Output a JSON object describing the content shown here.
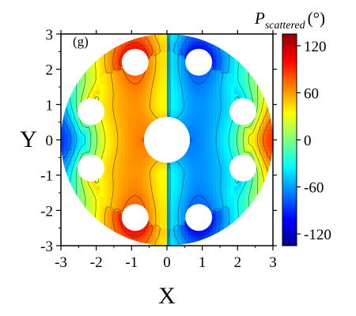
{
  "chart_data": {
    "type": "heatmap",
    "panel_label": "(g)",
    "xlabel": "X",
    "ylabel": "Y",
    "xlim": [
      -3,
      3
    ],
    "ylim": [
      -3,
      3
    ],
    "x_ticks": [
      "-3",
      "-2",
      "-1",
      "0",
      "1",
      "2",
      "3"
    ],
    "y_ticks": [
      "3",
      "2",
      "1",
      "0",
      "-1",
      "-2",
      "-3"
    ],
    "domain": {
      "shape": "disk",
      "center": [
        0,
        0
      ],
      "radius": 3
    },
    "holes": [
      {
        "x": 0,
        "y": 0,
        "r": 0.65
      },
      {
        "x": -0.9,
        "y": 2.2,
        "r": 0.38
      },
      {
        "x": 0.9,
        "y": 2.2,
        "r": 0.38
      },
      {
        "x": -2.15,
        "y": 0.8,
        "r": 0.38
      },
      {
        "x": 2.15,
        "y": 0.8,
        "r": 0.38
      },
      {
        "x": -2.15,
        "y": -0.8,
        "r": 0.38
      },
      {
        "x": 2.15,
        "y": -0.8,
        "r": 0.38
      },
      {
        "x": -0.9,
        "y": -2.2,
        "r": 0.38
      },
      {
        "x": 0.9,
        "y": -2.2,
        "r": 0.38
      }
    ],
    "colorbar": {
      "title_main": "P",
      "title_sub": "scattered",
      "unit": "(°)",
      "range": [
        -135,
        135
      ],
      "ticks": [
        "120",
        "60",
        "0",
        "-60",
        "-120"
      ],
      "tick_values": [
        120,
        60,
        0,
        -60,
        -120
      ],
      "colormap": "jet",
      "colors": [
        "#00008c",
        "#0000ff",
        "#0080ff",
        "#00ffff",
        "#80ff80",
        "#ffff00",
        "#ff8000",
        "#ff0000",
        "#8c0000"
      ]
    }
  }
}
